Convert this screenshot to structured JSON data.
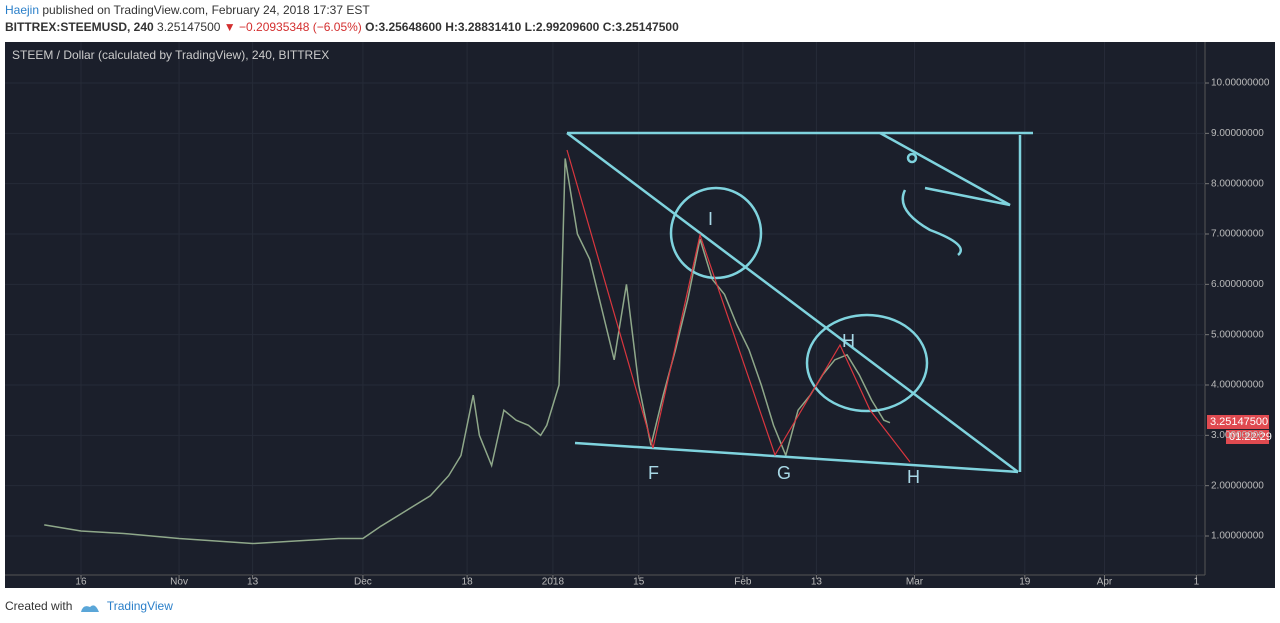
{
  "header": {
    "author": "Haejin",
    "published": "published on TradingView.com, February 24, 2018 17:37 EST",
    "symbol": "BITTREX:STEEMUSD, 240",
    "last": "3.25147500",
    "change": "−0.20935348 (−6.05%)",
    "open": "O:3.25648600",
    "high": "H:3.28831410",
    "low": "L:2.99209600",
    "close": "C:3.25147500"
  },
  "chart_data": {
    "type": "line",
    "title": "STEEM / Dollar (calculated by TradingView), 240, BITTREX",
    "x": [
      -83,
      -77,
      -70,
      -61,
      -55,
      -49,
      -42,
      -35,
      -31,
      -28,
      -24,
      -20,
      -17,
      -15,
      -13,
      -12,
      -10,
      -8,
      -6,
      -4,
      -2,
      -1,
      1,
      2,
      4,
      6,
      8,
      10,
      12,
      14,
      16,
      18,
      20,
      22,
      24,
      26,
      28,
      30,
      32,
      34,
      36,
      38,
      40,
      42,
      44,
      46,
      48,
      50,
      52,
      54,
      55
    ],
    "series": [
      {
        "name": "STEEMUSD",
        "color": "#8fa88a",
        "values": [
          1.22,
          1.1,
          1.05,
          0.95,
          0.9,
          0.85,
          0.9,
          0.95,
          0.95,
          1.2,
          1.5,
          1.8,
          2.2,
          2.6,
          3.8,
          3.0,
          2.4,
          3.5,
          3.3,
          3.2,
          3.0,
          3.2,
          4.0,
          8.5,
          7.0,
          6.5,
          5.5,
          4.5,
          6.0,
          4.0,
          2.8,
          3.8,
          4.7,
          5.7,
          6.9,
          6.1,
          5.8,
          5.2,
          4.7,
          4.0,
          3.2,
          2.6,
          3.5,
          3.8,
          4.2,
          4.5,
          4.6,
          4.2,
          3.7,
          3.3,
          3.251475
        ]
      }
    ],
    "xlim": [
      -89.4,
      106.4
    ],
    "xticks": [
      {
        "value": -77,
        "label": "16"
      },
      {
        "value": -61,
        "label": "Nov"
      },
      {
        "value": -49,
        "label": "13"
      },
      {
        "value": -31,
        "label": "Dec"
      },
      {
        "value": -14,
        "label": "18"
      },
      {
        "value": 0,
        "label": "2018"
      },
      {
        "value": 14,
        "label": "15"
      },
      {
        "value": 31,
        "label": "Feb"
      },
      {
        "value": 43,
        "label": "13"
      },
      {
        "value": 59,
        "label": "Mar"
      },
      {
        "value": 77,
        "label": "19"
      },
      {
        "value": 90,
        "label": "Apr"
      },
      {
        "value": 105,
        "label": "1"
      }
    ],
    "ylim": [
      0.225,
      10.815
    ],
    "yticks": [
      {
        "value": 1,
        "label": "1.00000000"
      },
      {
        "value": 2,
        "label": "2.00000000"
      },
      {
        "value": 3,
        "label": "3.00000000"
      },
      {
        "value": 4,
        "label": "4.00000000"
      },
      {
        "value": 5,
        "label": "5.00000000"
      },
      {
        "value": 6,
        "label": "6.00000000"
      },
      {
        "value": 7,
        "label": "7.00000000"
      },
      {
        "value": 8,
        "label": "8.00000000"
      },
      {
        "value": 9,
        "label": "9.00000000"
      },
      {
        "value": 10,
        "label": "10.00000000"
      }
    ],
    "grid": true,
    "price_tag": "3.25147500",
    "countdown": "01:22:29",
    "annotations": [
      "I",
      "H",
      "F",
      "G",
      "H"
    ]
  },
  "footer": {
    "created": "Created with",
    "brand": "TradingView"
  }
}
